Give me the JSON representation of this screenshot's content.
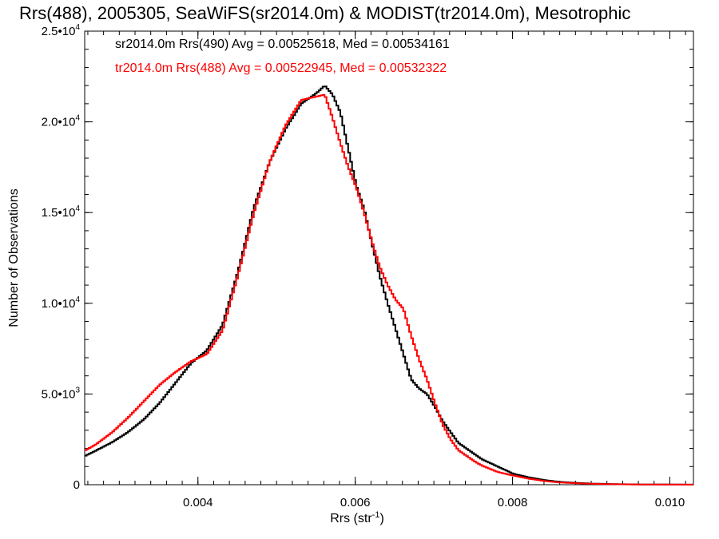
{
  "chart_data": {
    "type": "line",
    "title": "Rrs(488), 2005305, SeaWiFS(sr2014.0m) & MODIST(tr2014.0m), Mesotrophic",
    "xlabel_main": "Rrs (str",
    "xlabel_sup": "-1",
    "xlabel_end": ")",
    "ylabel": "Number of Observations",
    "xlim": [
      0.00256,
      0.0103
    ],
    "ylim": [
      0,
      25000
    ],
    "x_ticks": [
      {
        "value": 0.004,
        "label": "0.004"
      },
      {
        "value": 0.006,
        "label": "0.006"
      },
      {
        "value": 0.008,
        "label": "0.008"
      },
      {
        "value": 0.01,
        "label": "0.010"
      }
    ],
    "x_minor_step": 0.0002,
    "y_ticks": [
      {
        "value": 0,
        "mantissa": "0",
        "exp": ""
      },
      {
        "value": 5000,
        "mantissa": "5.0•10",
        "exp": "3"
      },
      {
        "value": 10000,
        "mantissa": "1.0•10",
        "exp": "4"
      },
      {
        "value": 15000,
        "mantissa": "1.5•10",
        "exp": "4"
      },
      {
        "value": 20000,
        "mantissa": "2.0•10",
        "exp": "4"
      },
      {
        "value": 25000,
        "mantissa": "2.5•10",
        "exp": "4"
      }
    ],
    "y_minor_step": 1000,
    "annotations": [
      {
        "text": "sr2014.0m Rrs(490) Avg = 0.00525618, Med = 0.00534161",
        "color": "#000000"
      },
      {
        "text": "tr2014.0m Rrs(488) Avg = 0.00522945, Med = 0.00532322",
        "color": "#ff0000"
      }
    ],
    "series": [
      {
        "color": "#000000",
        "points": [
          [
            0.00256,
            1600
          ],
          [
            0.0027,
            1900
          ],
          [
            0.0029,
            2350
          ],
          [
            0.0031,
            2900
          ],
          [
            0.0033,
            3600
          ],
          [
            0.0035,
            4500
          ],
          [
            0.0037,
            5600
          ],
          [
            0.0039,
            6700
          ],
          [
            0.0041,
            7400
          ],
          [
            0.0043,
            8800
          ],
          [
            0.0045,
            11800
          ],
          [
            0.0047,
            15300
          ],
          [
            0.0049,
            17800
          ],
          [
            0.0051,
            19600
          ],
          [
            0.0053,
            21000
          ],
          [
            0.0055,
            21600
          ],
          [
            0.0056,
            22000
          ],
          [
            0.0057,
            21500
          ],
          [
            0.0058,
            20500
          ],
          [
            0.0059,
            18500
          ],
          [
            0.006,
            16500
          ],
          [
            0.0061,
            15200
          ],
          [
            0.0062,
            13300
          ],
          [
            0.0063,
            11500
          ],
          [
            0.0064,
            10000
          ],
          [
            0.0065,
            8600
          ],
          [
            0.0066,
            7200
          ],
          [
            0.0067,
            5800
          ],
          [
            0.0068,
            5300
          ],
          [
            0.0069,
            5000
          ],
          [
            0.007,
            4300
          ],
          [
            0.0071,
            3500
          ],
          [
            0.0072,
            2900
          ],
          [
            0.0073,
            2300
          ],
          [
            0.0074,
            2000
          ],
          [
            0.0075,
            1700
          ],
          [
            0.0076,
            1400
          ],
          [
            0.0078,
            1000
          ],
          [
            0.008,
            600
          ],
          [
            0.0082,
            400
          ],
          [
            0.0084,
            250
          ],
          [
            0.0086,
            150
          ],
          [
            0.0088,
            100
          ],
          [
            0.009,
            60
          ],
          [
            0.0093,
            30
          ],
          [
            0.0096,
            15
          ],
          [
            0.01,
            8
          ],
          [
            0.0103,
            5
          ]
        ]
      },
      {
        "color": "#ff0000",
        "points": [
          [
            0.00256,
            1900
          ],
          [
            0.0027,
            2250
          ],
          [
            0.0029,
            2900
          ],
          [
            0.0031,
            3700
          ],
          [
            0.0033,
            4600
          ],
          [
            0.0035,
            5500
          ],
          [
            0.0037,
            6200
          ],
          [
            0.0039,
            6800
          ],
          [
            0.0041,
            7200
          ],
          [
            0.0043,
            8500
          ],
          [
            0.0045,
            11600
          ],
          [
            0.0047,
            15000
          ],
          [
            0.0049,
            17800
          ],
          [
            0.0051,
            19800
          ],
          [
            0.0053,
            21200
          ],
          [
            0.0055,
            21400
          ],
          [
            0.0056,
            21500
          ],
          [
            0.0057,
            20200
          ],
          [
            0.0058,
            18800
          ],
          [
            0.0059,
            17500
          ],
          [
            0.006,
            16400
          ],
          [
            0.0061,
            15000
          ],
          [
            0.0062,
            13400
          ],
          [
            0.0063,
            12000
          ],
          [
            0.0064,
            11000
          ],
          [
            0.0065,
            10200
          ],
          [
            0.0066,
            9700
          ],
          [
            0.0067,
            8200
          ],
          [
            0.0068,
            6900
          ],
          [
            0.0069,
            5800
          ],
          [
            0.007,
            4500
          ],
          [
            0.0071,
            3300
          ],
          [
            0.0072,
            2500
          ],
          [
            0.0073,
            1900
          ],
          [
            0.0074,
            1600
          ],
          [
            0.0075,
            1300
          ],
          [
            0.0076,
            1050
          ],
          [
            0.0078,
            700
          ],
          [
            0.008,
            500
          ],
          [
            0.0082,
            330
          ],
          [
            0.0084,
            200
          ],
          [
            0.0086,
            120
          ],
          [
            0.0088,
            80
          ],
          [
            0.009,
            50
          ],
          [
            0.0093,
            25
          ],
          [
            0.0096,
            12
          ],
          [
            0.01,
            6
          ],
          [
            0.0103,
            4
          ]
        ]
      }
    ]
  }
}
